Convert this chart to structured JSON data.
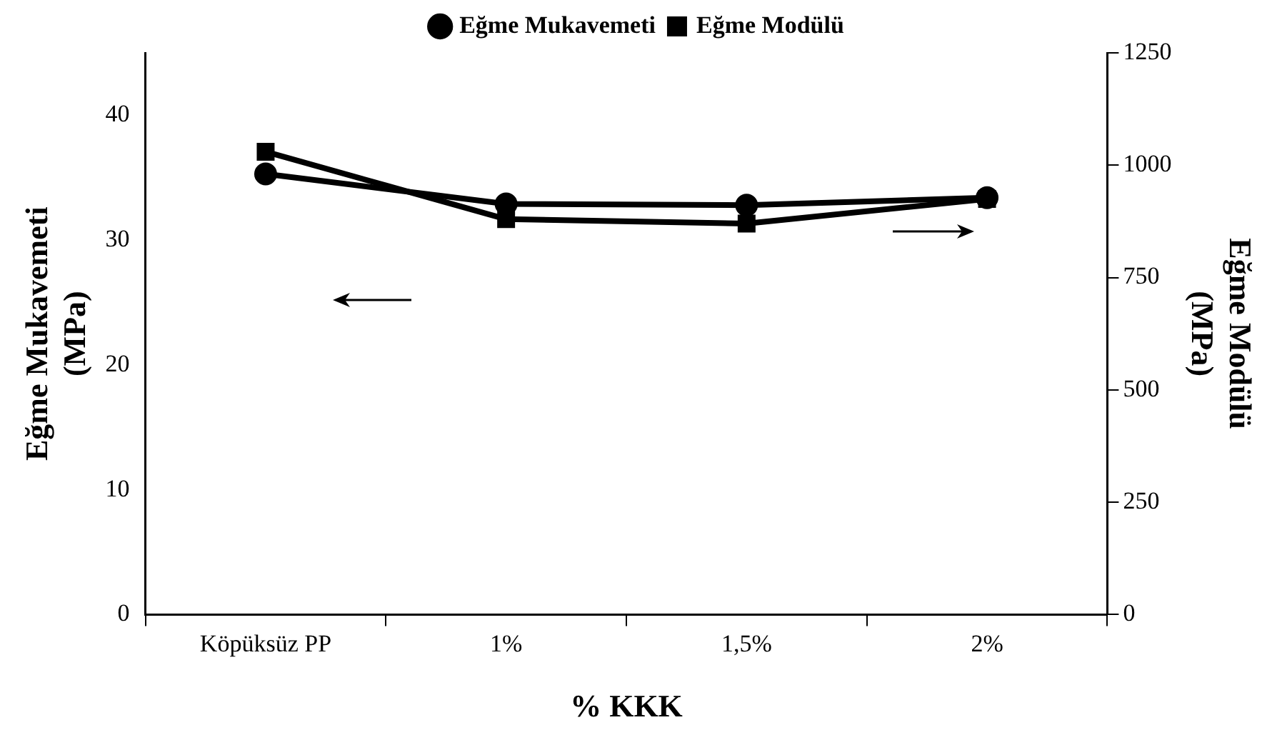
{
  "chart_data": {
    "type": "line",
    "xlabel": "% KKK",
    "ylabel": "Eğme Mukavemeti\n(MPa)",
    "y2label": "Eğme Modülü\n(MPa)",
    "categories": [
      "Köpüksüz PP",
      "1%",
      "1,5%",
      "2%"
    ],
    "series": [
      {
        "name": "Eğme Mukavemeti",
        "color": "#000000",
        "marker": "circle",
        "values": [
          35.3,
          32.9,
          32.8,
          33.4
        ]
      },
      {
        "name": "Eğme Modülü",
        "color": "#000000",
        "marker": "square",
        "axis": "y2",
        "values": [
          1030,
          880,
          870,
          925
        ]
      }
    ],
    "ylim": [
      0,
      45
    ],
    "yticks": [
      0,
      10,
      20,
      30,
      40
    ],
    "y2lim": [
      0,
      1250
    ],
    "y2ticks": [
      0,
      250,
      500,
      750,
      1000,
      1250
    ],
    "legend": "top",
    "grid": false,
    "line_style": "solid"
  }
}
